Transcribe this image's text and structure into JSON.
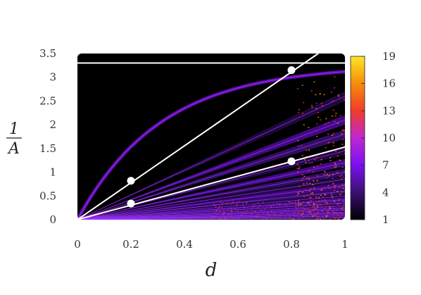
{
  "chart_data": {
    "type": "heatmap",
    "title": "",
    "xlabel": "d",
    "ylabel": {
      "numerator": "1",
      "denominator": "A"
    },
    "xlim": [
      0,
      1
    ],
    "ylim": [
      0,
      3.5
    ],
    "x_ticks": [
      "0",
      "0.2",
      "0.4",
      "0.6",
      "0.8",
      "1"
    ],
    "y_ticks": [
      "0",
      "0.5",
      "1",
      "1.5",
      "2",
      "2.5",
      "3",
      "3.5"
    ],
    "grid": false,
    "colorbar": {
      "ticks": [
        "1",
        "4",
        "7",
        "10",
        "13",
        "16",
        "19"
      ],
      "min": 1,
      "max": 19,
      "colormap": [
        "#000004",
        "#3b0f70",
        "#7a10f0",
        "#c026d3",
        "#f03c28",
        "#f58c0a",
        "#fde725"
      ]
    },
    "background_color": "#000000",
    "overlay_lines": [
      {
        "label": "horizontal",
        "points": [
          [
            0,
            3.3
          ],
          [
            1,
            3.3
          ]
        ]
      },
      {
        "label": "steep-line",
        "points": [
          [
            0,
            0
          ],
          [
            0.9,
            3.5
          ]
        ]
      },
      {
        "label": "shallow-line",
        "points": [
          [
            0,
            0
          ],
          [
            1,
            1.53
          ]
        ]
      }
    ],
    "markers": [
      {
        "x": 0.2,
        "y": 0.82
      },
      {
        "x": 0.8,
        "y": 3.15
      },
      {
        "x": 0.2,
        "y": 0.34
      },
      {
        "x": 0.8,
        "y": 1.23
      }
    ]
  }
}
